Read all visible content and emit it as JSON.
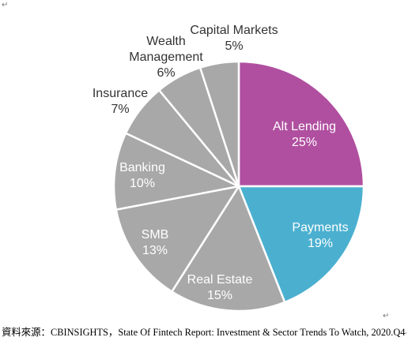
{
  "chart_data": {
    "type": "pie",
    "title": "",
    "slices": [
      {
        "label": "Alt Lending",
        "value": 25,
        "value_label": "25%",
        "color": "#b04fa0",
        "label_color": "#ffffff"
      },
      {
        "label": "Payments",
        "value": 19,
        "value_label": "19%",
        "color": "#4bb0d0",
        "label_color": "#ffffff"
      },
      {
        "label": "Real Estate",
        "value": 15,
        "value_label": "15%",
        "color": "#a8a8a8",
        "label_color": "#ffffff"
      },
      {
        "label": "SMB",
        "value": 13,
        "value_label": "13%",
        "color": "#a8a8a8",
        "label_color": "#ffffff"
      },
      {
        "label": "Banking",
        "value": 10,
        "value_label": "10%",
        "color": "#a8a8a8",
        "label_color": "#ffffff"
      },
      {
        "label": "Insurance",
        "value": 7,
        "value_label": "7%",
        "color": "#a8a8a8",
        "label_color": "#333333"
      },
      {
        "label": "Wealth\nManagement",
        "value": 6,
        "value_label": "6%",
        "color": "#a8a8a8",
        "label_color": "#333333"
      },
      {
        "label": "Capital Markets",
        "value": 5,
        "value_label": "5%",
        "color": "#a8a8a8",
        "label_color": "#333333"
      }
    ],
    "start_angle_deg": 0,
    "direction": "clockwise",
    "slice_border_color": "#ffffff",
    "legend": "none"
  },
  "caption": {
    "text": "資料來源：CBINSIGHTS，State Of Fintech Report: Investment & Sector Trends To Watch, 2020.Q4"
  },
  "marks": {
    "return_symbol": "↵"
  }
}
